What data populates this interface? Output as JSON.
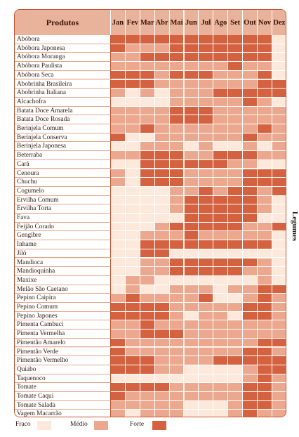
{
  "header": {
    "product_col": "Produtos",
    "months": [
      "Jan",
      "Fev",
      "Mar",
      "Abr",
      "Mai",
      "Jun",
      "Jul",
      "Ago",
      "Set",
      "Out",
      "Nov",
      "Dez"
    ]
  },
  "side_label": "Legumes",
  "legend": {
    "weak": "Fraco",
    "medium": "Médio",
    "strong": "Forte"
  },
  "colors": {
    "weak": "#fde9dc",
    "medium": "#eba88e",
    "strong": "#d46240",
    "header": "#e9b29a",
    "border": "#c4532f"
  },
  "products": [
    {
      "name": "Abóbora",
      "levels": [
        2,
        2,
        2,
        2,
        2,
        2,
        2,
        2,
        2,
        2,
        2,
        0
      ]
    },
    {
      "name": "Abóbora Japonesa",
      "levels": [
        2,
        1,
        1,
        1,
        2,
        2,
        2,
        2,
        2,
        2,
        2,
        0
      ]
    },
    {
      "name": "Abóbora Moranga",
      "levels": [
        1,
        1,
        2,
        2,
        2,
        2,
        2,
        2,
        2,
        2,
        2,
        0
      ]
    },
    {
      "name": "Abóbora Paulista",
      "levels": [
        1,
        1,
        1,
        1,
        1,
        1,
        1,
        1,
        2,
        1,
        1,
        0
      ]
    },
    {
      "name": "Abóbora Seca",
      "levels": [
        2,
        2,
        2,
        1,
        2,
        2,
        2,
        1,
        1,
        1,
        2,
        0
      ]
    },
    {
      "name": "Abobrinha Brasileira",
      "levels": [
        2,
        2,
        2,
        1,
        1,
        1,
        1,
        1,
        1,
        1,
        2,
        2
      ]
    },
    {
      "name": "Abobrinha Italiana",
      "levels": [
        1,
        0,
        1,
        0,
        1,
        1,
        1,
        2,
        2,
        2,
        2,
        2
      ]
    },
    {
      "name": "Alcachofra",
      "levels": [
        0,
        0,
        0,
        0,
        1,
        1,
        1,
        1,
        1,
        2,
        1,
        0
      ]
    },
    {
      "name": "Batata Doce Amarela",
      "levels": [
        1,
        1,
        1,
        1,
        2,
        2,
        2,
        1,
        1,
        1,
        1,
        1
      ]
    },
    {
      "name": "Batata Doce Rosada",
      "levels": [
        1,
        1,
        1,
        1,
        2,
        2,
        2,
        1,
        1,
        1,
        1,
        1
      ]
    },
    {
      "name": "Berinjela Comum",
      "levels": [
        1,
        1,
        2,
        1,
        1,
        1,
        1,
        1,
        1,
        1,
        2,
        1
      ]
    },
    {
      "name": "Berinjela Conserva",
      "levels": [
        2,
        0,
        0,
        1,
        1,
        1,
        1,
        1,
        1,
        2,
        1,
        1
      ]
    },
    {
      "name": "Berinjela Japonesa",
      "levels": [
        0,
        0,
        1,
        1,
        1,
        0,
        1,
        0,
        0,
        1,
        0,
        1
      ]
    },
    {
      "name": "Beterraba",
      "levels": [
        1,
        1,
        2,
        2,
        2,
        1,
        1,
        2,
        2,
        2,
        1,
        1
      ]
    },
    {
      "name": "Cará",
      "levels": [
        0,
        0,
        2,
        2,
        2,
        2,
        2,
        2,
        1,
        1,
        0,
        0
      ]
    },
    {
      "name": "Cenoura",
      "levels": [
        1,
        0,
        2,
        2,
        2,
        1,
        1,
        1,
        1,
        2,
        2,
        2
      ]
    },
    {
      "name": "Chuchu",
      "levels": [
        1,
        0,
        2,
        2,
        2,
        1,
        1,
        1,
        1,
        2,
        2,
        2
      ]
    },
    {
      "name": "Cogumelo",
      "levels": [
        0,
        0,
        0,
        0,
        1,
        1,
        2,
        1,
        2,
        2,
        1,
        2
      ]
    },
    {
      "name": "Ervilha Comum",
      "levels": [
        0,
        0,
        0,
        0,
        1,
        2,
        2,
        2,
        2,
        2,
        1,
        0
      ]
    },
    {
      "name": "Ervilha Torta",
      "levels": [
        0,
        0,
        0,
        0,
        1,
        2,
        2,
        2,
        2,
        2,
        1,
        0
      ]
    },
    {
      "name": "Fava",
      "levels": [
        0,
        0,
        0,
        0,
        0,
        2,
        2,
        2,
        2,
        2,
        0,
        0
      ]
    },
    {
      "name": "Feijão Corado",
      "levels": [
        0,
        0,
        0,
        1,
        2,
        2,
        2,
        2,
        2,
        1,
        1,
        2
      ]
    },
    {
      "name": "Gengibre",
      "levels": [
        0,
        0,
        1,
        1,
        1,
        2,
        1,
        1,
        1,
        1,
        1,
        0
      ]
    },
    {
      "name": "Inhame",
      "levels": [
        0,
        0,
        2,
        2,
        2,
        2,
        2,
        2,
        2,
        2,
        2,
        0
      ]
    },
    {
      "name": "Jiló",
      "levels": [
        0,
        0,
        2,
        2,
        0,
        0,
        0,
        0,
        0,
        0,
        0,
        0
      ]
    },
    {
      "name": "Mandioca",
      "levels": [
        0,
        0,
        1,
        1,
        2,
        2,
        2,
        2,
        2,
        2,
        1,
        0
      ]
    },
    {
      "name": "Mandioquinha",
      "levels": [
        0,
        0,
        1,
        1,
        2,
        2,
        2,
        2,
        2,
        1,
        1,
        0
      ]
    },
    {
      "name": "Maxixe",
      "levels": [
        0,
        1,
        1,
        0,
        0,
        0,
        0,
        0,
        0,
        0,
        1,
        0
      ]
    },
    {
      "name": "Melão São Caetano",
      "levels": [
        0,
        1,
        0,
        0,
        1,
        1,
        1,
        0,
        1,
        1,
        2,
        2
      ]
    },
    {
      "name": "Pepino Caipira",
      "levels": [
        1,
        2,
        1,
        1,
        1,
        1,
        2,
        0,
        0,
        1,
        2,
        1
      ]
    },
    {
      "name": "Pepino Comum",
      "levels": [
        2,
        2,
        2,
        2,
        1,
        1,
        1,
        1,
        1,
        2,
        2,
        1
      ]
    },
    {
      "name": "Pepino Japones",
      "levels": [
        2,
        2,
        2,
        2,
        1,
        0,
        1,
        1,
        0,
        2,
        2,
        1
      ]
    },
    {
      "name": "Pimenta Cambuci",
      "levels": [
        1,
        1,
        2,
        1,
        1,
        1,
        1,
        1,
        1,
        1,
        1,
        1
      ]
    },
    {
      "name": "Pimenta Vermelha",
      "levels": [
        1,
        1,
        2,
        2,
        2,
        1,
        1,
        1,
        1,
        1,
        1,
        1
      ]
    },
    {
      "name": "Pimentão Amarelo",
      "levels": [
        2,
        1,
        1,
        1,
        1,
        1,
        1,
        1,
        1,
        1,
        2,
        2
      ]
    },
    {
      "name": "Pimentão Verde",
      "levels": [
        2,
        1,
        1,
        1,
        1,
        1,
        1,
        1,
        1,
        2,
        2,
        1
      ]
    },
    {
      "name": "Pimentão Vermelho",
      "levels": [
        2,
        2,
        2,
        1,
        1,
        1,
        1,
        2,
        2,
        2,
        2,
        2
      ]
    },
    {
      "name": "Quiabo",
      "levels": [
        2,
        2,
        2,
        1,
        1,
        0,
        0,
        0,
        0,
        1,
        2,
        2
      ]
    },
    {
      "name": "Taquenoco",
      "levels": [
        0,
        0,
        0,
        0,
        0,
        0,
        0,
        0,
        0,
        1,
        2,
        1
      ]
    },
    {
      "name": "Tomate",
      "levels": [
        2,
        2,
        2,
        2,
        1,
        1,
        1,
        1,
        1,
        2,
        2,
        1
      ]
    },
    {
      "name": "Tomate Caqui",
      "levels": [
        2,
        1,
        1,
        1,
        1,
        1,
        1,
        1,
        1,
        2,
        2,
        1
      ]
    },
    {
      "name": "Tomate Salada",
      "levels": [
        1,
        1,
        1,
        1,
        1,
        0,
        0,
        0,
        1,
        2,
        2,
        1
      ]
    },
    {
      "name": "Vagem Macarrão",
      "levels": [
        1,
        0,
        1,
        1,
        1,
        0,
        0,
        0,
        1,
        2,
        1,
        1
      ]
    }
  ]
}
